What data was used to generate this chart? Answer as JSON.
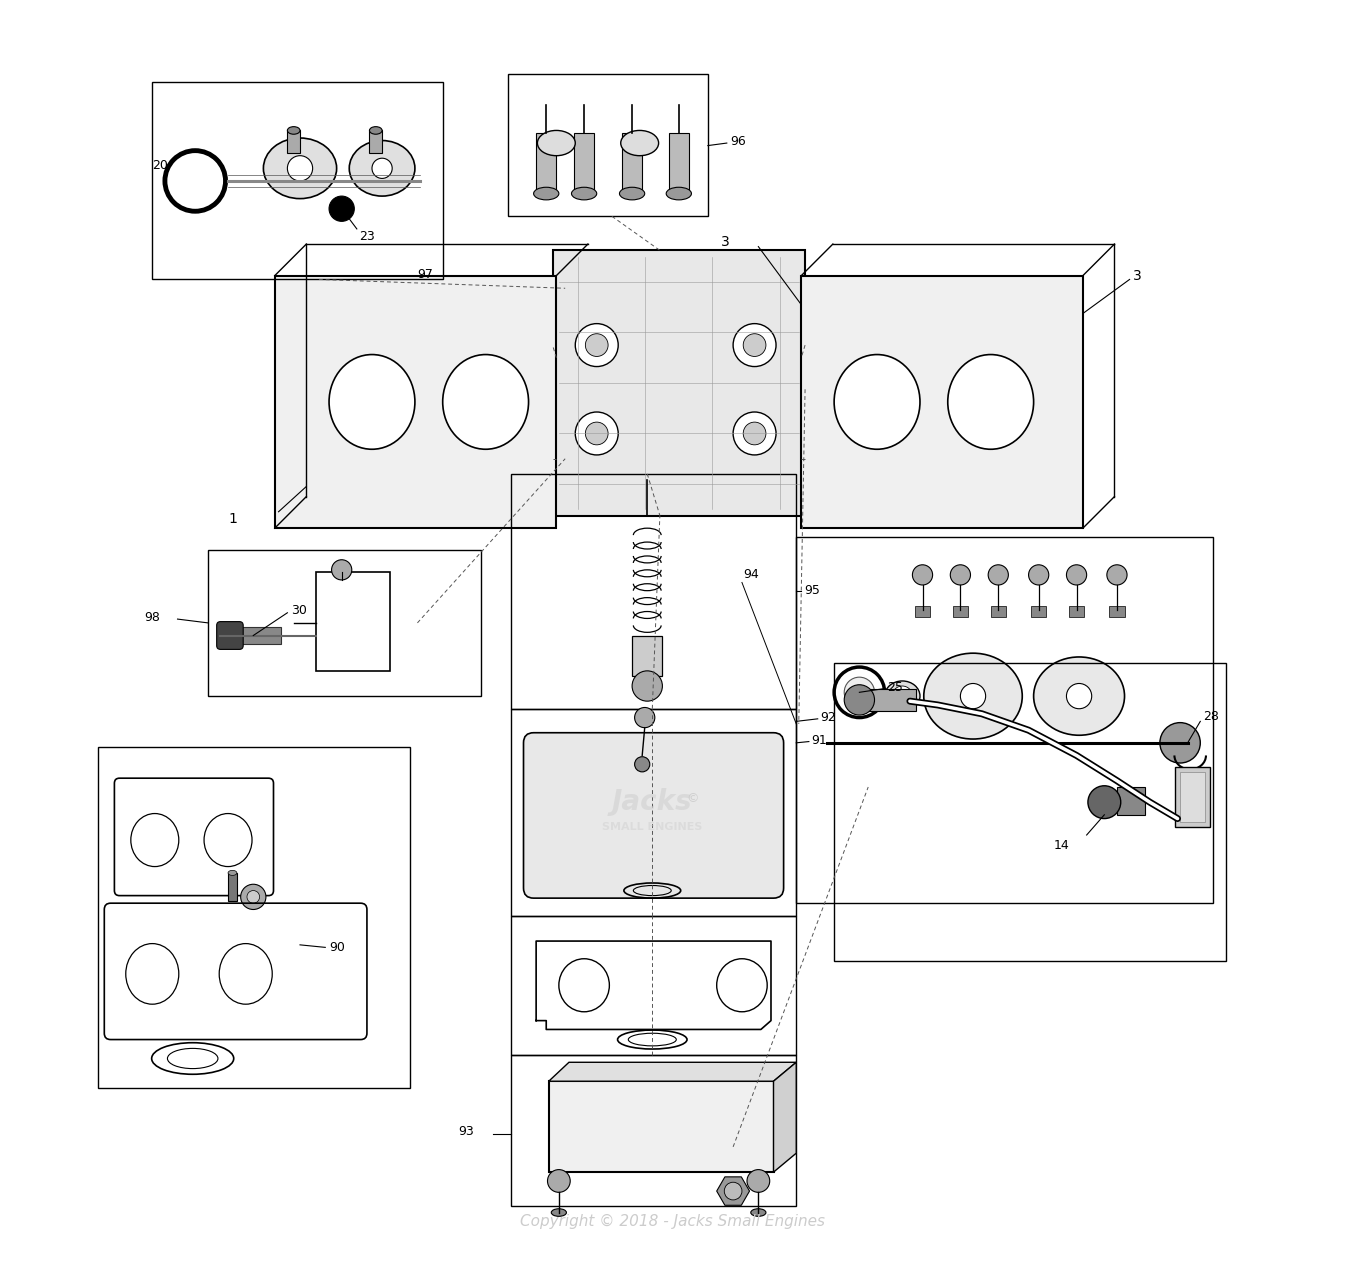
{
  "title": "",
  "copyright_text": "Copyright © 2018 - Jacks Small Engines",
  "copyright_color": "#cccccc",
  "background_color": "#ffffff",
  "line_color": "#000000",
  "box_line_color": "#000000"
}
